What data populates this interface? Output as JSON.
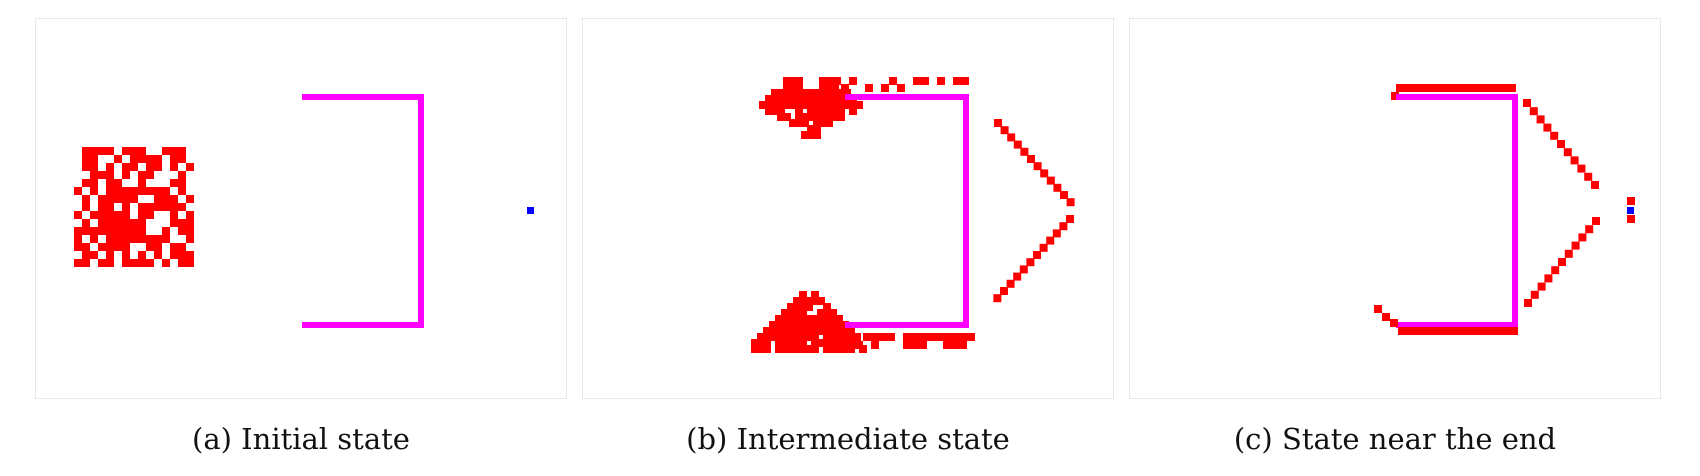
{
  "colors": {
    "agent": "#ff0000",
    "wall": "#ff00ff",
    "target": "#0000ff",
    "border": "#e8e8e8"
  },
  "panels": [
    {
      "id": "a",
      "caption": "(a) Initial state"
    },
    {
      "id": "b",
      "caption": "(b) Intermediate state"
    },
    {
      "id": "c",
      "caption": "(c) State near the end"
    }
  ]
}
